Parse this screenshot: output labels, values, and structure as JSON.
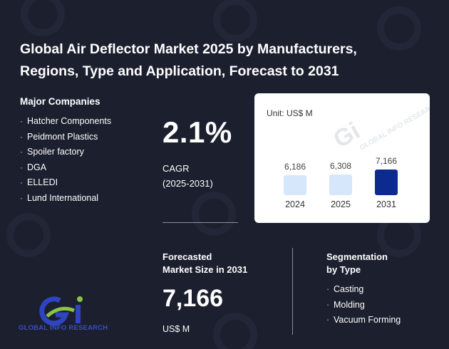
{
  "title": "Global Air Deflector Market 2025 by Manufacturers, Regions, Type and Application, Forecast to 2031",
  "companies": {
    "heading": "Major Companies",
    "items": [
      "Hatcher Components",
      "Peidmont Plastics",
      "Spoiler factory",
      "DGA",
      "ELLEDI",
      "Lund International"
    ]
  },
  "cagr": {
    "value": "2.1%",
    "label": "CAGR",
    "period": "(2025-2031)"
  },
  "chart_data": {
    "type": "bar",
    "unit_label": "Unit: US$ M",
    "categories": [
      "2024",
      "2025",
      "2031"
    ],
    "values": [
      6186,
      6308,
      7166
    ],
    "value_labels": [
      "6,186",
      "6,308",
      "7,166"
    ],
    "colors": [
      "#d6e6fb",
      "#d6e6fb",
      "#0d2b8e"
    ]
  },
  "forecast": {
    "heading_line1": "Forecasted",
    "heading_line2": "Market Size in 2031",
    "value": "7,166",
    "unit": "US$ M"
  },
  "segmentation": {
    "heading_line1": "Segmentation",
    "heading_line2": "by Type",
    "items": [
      "Casting",
      "Molding",
      "Vacuum Forming"
    ]
  },
  "logo": {
    "text": "GLOBAL INFO RESEARCH",
    "icon": "gi-logo-icon"
  },
  "colors": {
    "background": "#1b1f2e",
    "accent_blue": "#0d2b8e",
    "light_bar": "#d6e6fb",
    "logo_green": "#8bc34a",
    "logo_blue": "#2f44c0"
  }
}
